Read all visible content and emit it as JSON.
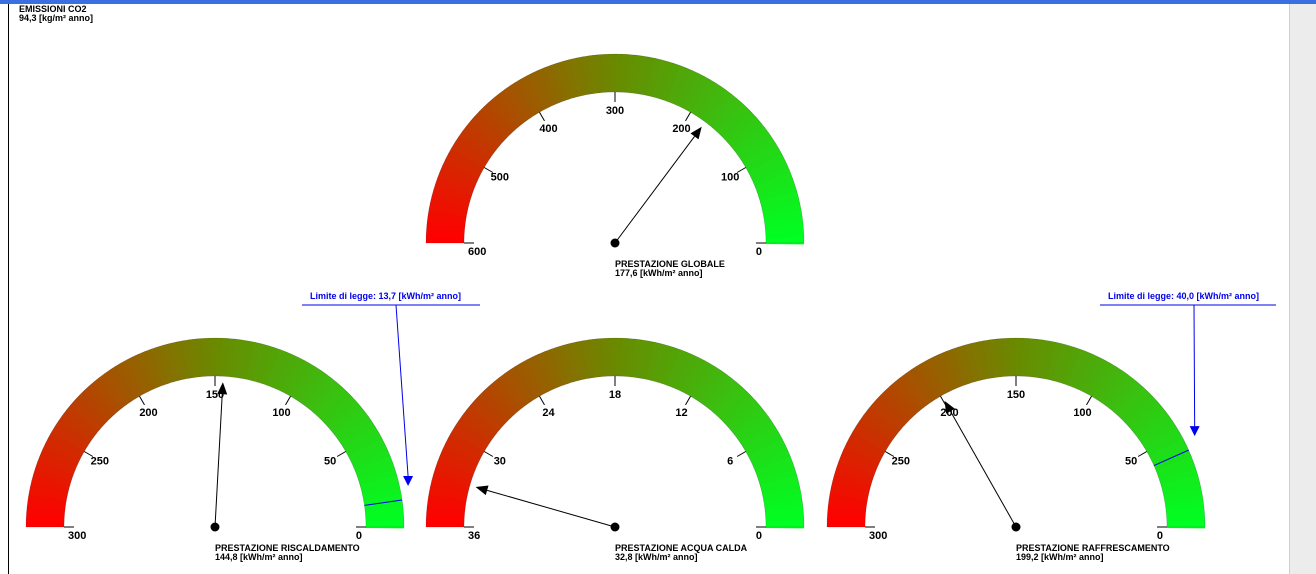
{
  "emissions": {
    "title": "EMISSIONI CO2",
    "value": "94,3 [kg/m² anno]"
  },
  "colors": {
    "low": "#00ff22",
    "mid": "#6a8a00",
    "high": "#ff0000",
    "limit": "#0000ee",
    "accent_bar": "#3b6fe0"
  },
  "gauges": [
    {
      "id": "globale",
      "title": "PRESTAZIONE GLOBALE",
      "value_text": "177,6 [kWh/m² anno]",
      "value": 177.6,
      "min": 0,
      "max": 600,
      "ticks": [
        "600",
        "500",
        "400",
        "300",
        "200",
        "100",
        "0"
      ],
      "tick_values": [
        600,
        500,
        400,
        300,
        200,
        100,
        0
      ],
      "limit_label": "",
      "limit_value": null
    },
    {
      "id": "riscaldamento",
      "title": "PRESTAZIONE RISCALDAMENTO",
      "value_text": "144,8 [kWh/m² anno]",
      "value": 144.8,
      "min": 0,
      "max": 300,
      "ticks": [
        "300",
        "250",
        "200",
        "150",
        "100",
        "50",
        "0"
      ],
      "tick_values": [
        300,
        250,
        200,
        150,
        100,
        50,
        0
      ],
      "limit_label": "Limite di legge: 13,7 [kWh/m² anno]",
      "limit_value": 13.7
    },
    {
      "id": "acqua-calda",
      "title": "PRESTAZIONE ACQUA CALDA",
      "value_text": "32,8 [kWh/m² anno]",
      "value": 32.8,
      "min": 0,
      "max": 36,
      "ticks": [
        "36",
        "30",
        "24",
        "18",
        "12",
        "6",
        "0"
      ],
      "tick_values": [
        36,
        30,
        24,
        18,
        12,
        6,
        0
      ],
      "limit_label": "",
      "limit_value": null
    },
    {
      "id": "raffrescamento",
      "title": "PRESTAZIONE RAFFRESCAMENTO",
      "value_text": "199,2 [kWh/m² anno]",
      "value": 199.2,
      "min": 0,
      "max": 300,
      "ticks": [
        "300",
        "250",
        "200",
        "150",
        "100",
        "50",
        "0"
      ],
      "tick_values": [
        300,
        250,
        200,
        150,
        100,
        50,
        0
      ],
      "limit_label": "Limite di legge: 40,0 [kWh/m² anno]",
      "limit_value": 40.0
    }
  ]
}
